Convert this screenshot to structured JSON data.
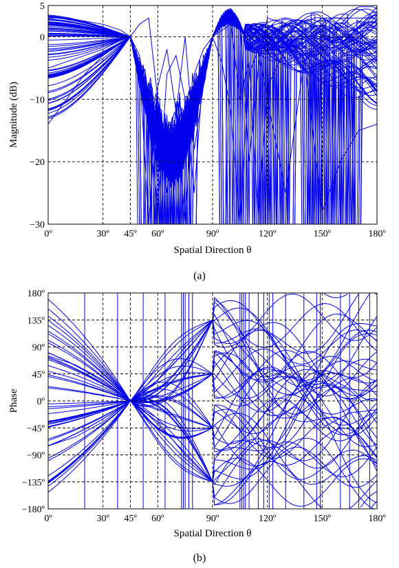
{
  "chart_data": [
    {
      "type": "line",
      "caption": "(a)",
      "xlabel": "Spatial Direction θ",
      "ylabel": "Magnitude (dB)",
      "xlim": [
        0,
        180
      ],
      "ylim": [
        -30,
        5
      ],
      "xticks": [
        0,
        30,
        45,
        60,
        90,
        120,
        150,
        180
      ],
      "xtick_labels": [
        "0º",
        "30º",
        "45º",
        "60º",
        "90º",
        "120º",
        "150º",
        "180º"
      ],
      "yticks": [
        5,
        0,
        -10,
        -20,
        -30
      ],
      "ytick_labels": [
        "5",
        "0",
        "−10",
        "−20",
        "−30"
      ],
      "grid": true,
      "line_color": "#0000ee",
      "series_description": "Family of ~70 magnitude responses; all pass through 0 dB at 45º and 90º",
      "series": [
        {
          "x": [
            0,
            10,
            20,
            30,
            40,
            45,
            50,
            55,
            60,
            65,
            70,
            75,
            80,
            85,
            90,
            95,
            100,
            105,
            110,
            115,
            120,
            130,
            140,
            150,
            160,
            170,
            180
          ],
          "y": [
            -14,
            -10,
            -6,
            -3,
            -1,
            0,
            2,
            3,
            -10,
            -25,
            -12,
            0,
            -18,
            -8,
            0,
            3,
            4.5,
            2,
            -20,
            -5,
            3,
            2,
            -3,
            -28,
            -20,
            -15,
            -14
          ]
        },
        {
          "x": [
            0,
            10,
            20,
            30,
            40,
            45,
            50,
            55,
            60,
            65,
            70,
            75,
            80,
            85,
            90,
            95,
            100,
            105,
            110,
            115,
            120,
            130,
            140,
            150,
            160,
            170,
            180
          ],
          "y": [
            3,
            3,
            2.5,
            2,
            1,
            0,
            -5,
            -30,
            -8,
            -2,
            -12,
            -30,
            -6,
            -2,
            0,
            1,
            2,
            -10,
            -4,
            -29,
            -8,
            -2,
            1,
            3,
            3,
            3,
            3
          ]
        },
        {
          "x": [
            0,
            10,
            20,
            30,
            40,
            45,
            50,
            55,
            60,
            65,
            70,
            75,
            80,
            85,
            90,
            95,
            100,
            105,
            110,
            115,
            120,
            130,
            140,
            150,
            160,
            170,
            180
          ],
          "y": [
            -5,
            -4,
            -3,
            -2,
            -0.5,
            0,
            -3,
            -12,
            -28,
            -6,
            -3,
            -10,
            -25,
            -5,
            0,
            -4,
            -12,
            -30,
            -6,
            -2,
            -10,
            -25,
            -4,
            0,
            -2,
            -6,
            -8
          ]
        }
      ]
    },
    {
      "type": "line",
      "caption": "(b)",
      "xlabel": "Spatial Direction θ",
      "ylabel": "Phase",
      "xlim": [
        0,
        180
      ],
      "ylim": [
        -180,
        180
      ],
      "xticks": [
        0,
        30,
        45,
        60,
        90,
        120,
        150,
        180
      ],
      "xtick_labels": [
        "0º",
        "30º",
        "45º",
        "60º",
        "90º",
        "120º",
        "150º",
        "180º"
      ],
      "yticks": [
        180,
        135,
        90,
        45,
        0,
        -45,
        -90,
        -135,
        -180
      ],
      "ytick_labels": [
        "180º",
        "135º",
        "90º",
        "45º",
        "0º",
        "−45º",
        "−90º",
        "−135º",
        "−180º"
      ],
      "grid": true,
      "line_color": "#0000ee",
      "series_description": "Family of wrapped phase responses; curves converge at 0º at θ=45º and at ±45º/±135º at θ=90º",
      "series": [
        {
          "x": [
            0,
            15,
            30,
            45,
            60,
            75,
            90,
            105,
            120,
            135,
            150,
            165,
            180
          ],
          "y": [
            75,
            60,
            35,
            0,
            -35,
            -90,
            -135,
            -90,
            -40,
            -10,
            -45,
            -20,
            -15
          ]
        },
        {
          "x": [
            0,
            15,
            30,
            45,
            60,
            75,
            90,
            105,
            120,
            135,
            150,
            165,
            180
          ],
          "y": [
            -75,
            -60,
            -35,
            0,
            35,
            90,
            135,
            90,
            40,
            10,
            45,
            20,
            15
          ]
        }
      ]
    }
  ]
}
